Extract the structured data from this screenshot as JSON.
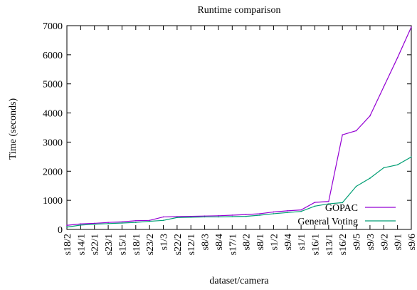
{
  "chart_data": {
    "type": "line",
    "title": "Runtime comparison",
    "xlabel": "dataset/camera",
    "ylabel": "Time (seconds)",
    "ylim": [
      0,
      7000
    ],
    "yticks": [
      0,
      1000,
      2000,
      3000,
      4000,
      5000,
      6000,
      7000
    ],
    "grid": false,
    "legend_position": "bottom-right",
    "categories": [
      "s18/2",
      "s14/1",
      "s22/1",
      "s23/1",
      "s15/1",
      "s18/1",
      "s23/2",
      "s1/3",
      "s22/2",
      "s12/1",
      "s8/3",
      "s8/4",
      "s17/1",
      "s8/2",
      "s8/1",
      "s1/2",
      "s9/4",
      "s1/1",
      "s16/1",
      "s13/1",
      "s16/2",
      "s9/5",
      "s9/3",
      "s9/2",
      "s9/1",
      "s9/6"
    ],
    "series": [
      {
        "name": "GOPAC",
        "color": "#9400d3",
        "values": [
          140,
          190,
          210,
          240,
          260,
          300,
          310,
          430,
          440,
          450,
          460,
          470,
          490,
          510,
          540,
          600,
          640,
          670,
          930,
          960,
          3250,
          3390,
          3900,
          4900,
          5900,
          6950
        ]
      },
      {
        "name": "General Voting",
        "color": "#009e73",
        "values": [
          80,
          150,
          180,
          200,
          220,
          240,
          280,
          310,
          410,
          420,
          430,
          430,
          440,
          450,
          490,
          540,
          580,
          620,
          800,
          880,
          920,
          1480,
          1760,
          2120,
          2220,
          2490
        ]
      }
    ]
  }
}
